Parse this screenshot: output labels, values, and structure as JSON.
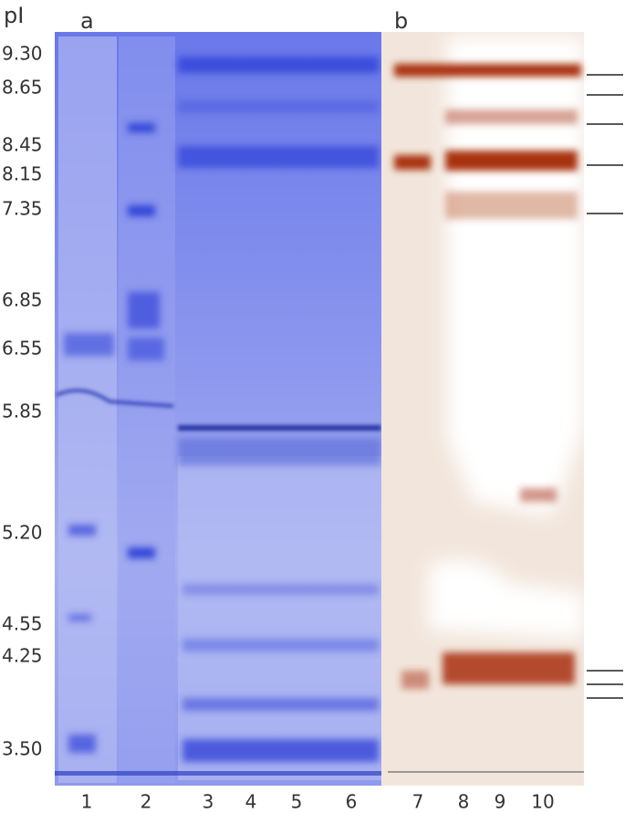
{
  "axis_label": "pI",
  "panels": [
    {
      "label": "a"
    },
    {
      "label": "b"
    }
  ],
  "pi_markers": [
    "9.30",
    "8.65",
    "8.45",
    "8.15",
    "7.35",
    "6.85",
    "6.55",
    "5.85",
    "5.20",
    "4.55",
    "4.25",
    "3.50"
  ],
  "lanes": [
    "1",
    "2",
    "3",
    "4",
    "5",
    "6",
    "7",
    "8",
    "9",
    "10"
  ]
}
